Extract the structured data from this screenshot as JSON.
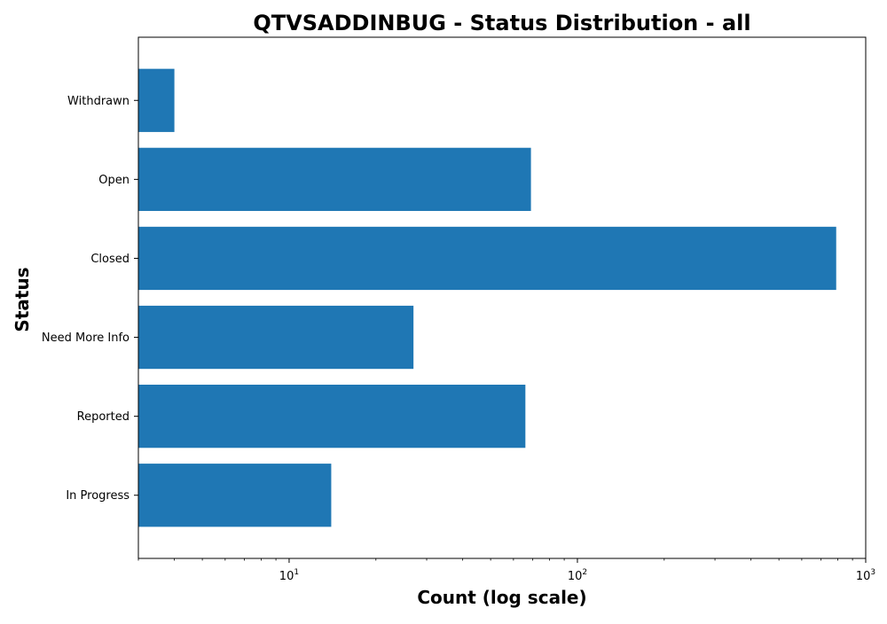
{
  "chart_data": {
    "type": "bar",
    "orientation": "horizontal",
    "title": "QTVSADDINBUG - Status Distribution - all",
    "xlabel": "Count (log scale)",
    "ylabel": "Status",
    "x_scale": "log",
    "xlim": [
      3,
      1000
    ],
    "x_ticks": [
      {
        "value": 10,
        "base": "10",
        "exp": "1"
      },
      {
        "value": 100,
        "base": "10",
        "exp": "2"
      },
      {
        "value": 1000,
        "base": "10",
        "exp": "3"
      }
    ],
    "categories": [
      "In Progress",
      "Reported",
      "Need More Info",
      "Closed",
      "Open",
      "Withdrawn"
    ],
    "values": [
      14,
      66,
      27,
      790,
      69,
      4
    ],
    "bar_color": "#1f77b4",
    "grid": false,
    "legend": null
  }
}
